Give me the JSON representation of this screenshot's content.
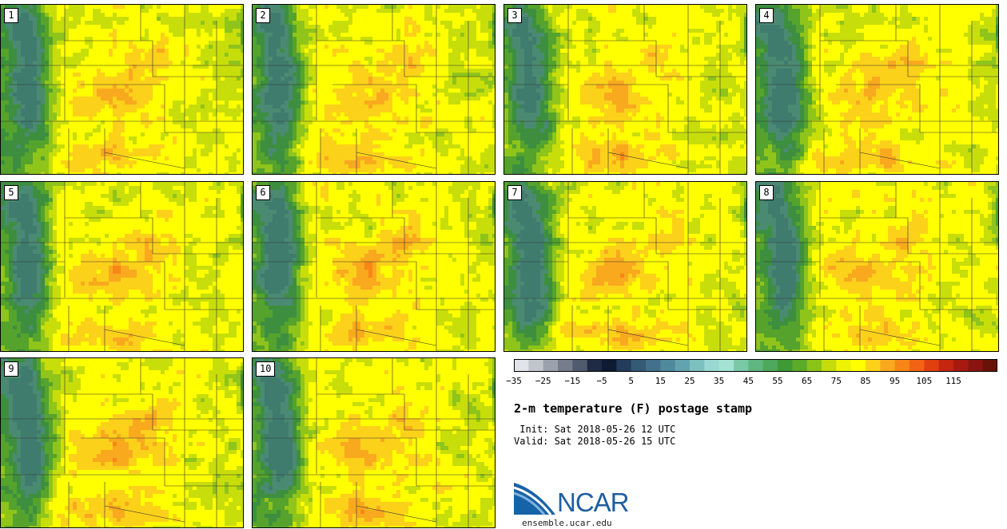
{
  "panels": [
    {
      "label": "1"
    },
    {
      "label": "2"
    },
    {
      "label": "3"
    },
    {
      "label": "4"
    },
    {
      "label": "5"
    },
    {
      "label": "6"
    },
    {
      "label": "7"
    },
    {
      "label": "8"
    },
    {
      "label": "9"
    },
    {
      "label": "10"
    }
  ],
  "colorbar": {
    "colors": [
      "#e1e4e8",
      "#c1c5cc",
      "#9ca2ad",
      "#757d8d",
      "#505b6f",
      "#1f2a44",
      "#0f1a33",
      "#233c5c",
      "#355a75",
      "#43708c",
      "#4f8a9c",
      "#62a3ad",
      "#7cc0c0",
      "#98d9d1",
      "#a4e2d4",
      "#7ac9a6",
      "#5fb77f",
      "#4ea85b",
      "#3f9a35",
      "#5caa29",
      "#8ac417",
      "#c5db0c",
      "#eef305",
      "#ffff00",
      "#fcd11a",
      "#f9a91e",
      "#f78617",
      "#f26414",
      "#e0400f",
      "#c5260f",
      "#a81a10",
      "#8a1510",
      "#6b1208"
    ],
    "ticks": [
      "-35",
      "-25",
      "-15",
      "-5",
      "5",
      "15",
      "25",
      "35",
      "45",
      "55",
      "65",
      "75",
      "85",
      "95",
      "105",
      "115"
    ]
  },
  "title": "2-m temperature (F) postage stamp",
  "init": " Init: Sat 2018-05-26 12 UTC",
  "valid": "Valid: Sat 2018-05-26 15 UTC",
  "logo": {
    "name": "NCAR",
    "url": "ensemble.ucar.edu"
  }
}
